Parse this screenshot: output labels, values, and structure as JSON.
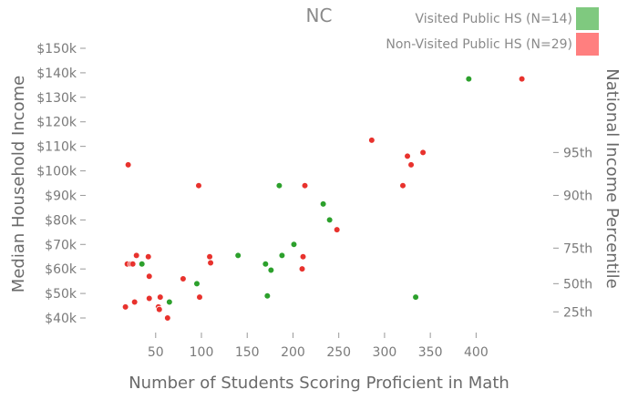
{
  "chart_data": {
    "type": "scatter",
    "title": "NC",
    "xlabel": "Number of Students Scoring Proficient in Math",
    "ylabel": "Median Household Income",
    "y2label": "National Income Percentile",
    "xlim": [
      0,
      460
    ],
    "ylim": [
      35000,
      155000
    ],
    "x_ticks": [
      50,
      100,
      150,
      200,
      250,
      300,
      350,
      400
    ],
    "x_tick_labels": [
      "50",
      "100",
      "150",
      "200",
      "250",
      "300",
      "350",
      "400"
    ],
    "y_ticks": [
      40000,
      50000,
      60000,
      70000,
      80000,
      90000,
      100000,
      110000,
      120000,
      130000,
      140000,
      150000
    ],
    "y_tick_labels": [
      "$40k",
      "$50k",
      "$60k",
      "$70k",
      "$80k",
      "$90k",
      "$100k",
      "$110k",
      "$120k",
      "$130k",
      "$140k",
      "$150k"
    ],
    "y2_ticks": [
      {
        "label": "95th",
        "value": 107500
      },
      {
        "label": "90th",
        "value": 90000
      },
      {
        "label": "75th",
        "value": 68500
      },
      {
        "label": "50th",
        "value": 54000
      },
      {
        "label": "25th",
        "value": 42500
      }
    ],
    "grid": false,
    "legend_position": "top-right",
    "series": [
      {
        "name": "Visited Public HS (N=14)",
        "color": "#2ca02c",
        "legend_color": "#7fc97f",
        "points": [
          {
            "x": 35,
            "y": 62000
          },
          {
            "x": 65,
            "y": 46500
          },
          {
            "x": 95,
            "y": 54000
          },
          {
            "x": 140,
            "y": 65500
          },
          {
            "x": 170,
            "y": 62000
          },
          {
            "x": 172,
            "y": 49000
          },
          {
            "x": 176,
            "y": 59500
          },
          {
            "x": 185,
            "y": 94000
          },
          {
            "x": 188,
            "y": 65500
          },
          {
            "x": 201,
            "y": 70000
          },
          {
            "x": 233,
            "y": 86500
          },
          {
            "x": 240,
            "y": 80000
          },
          {
            "x": 334,
            "y": 48500
          },
          {
            "x": 392,
            "y": 137500
          }
        ]
      },
      {
        "name": "Non-Visited Public HS (N=29)",
        "color": "#e8322d",
        "legend_color": "#ff7f7f",
        "points": [
          {
            "x": 17,
            "y": 44500
          },
          {
            "x": 19,
            "y": 62000
          },
          {
            "x": 20,
            "y": 102500
          },
          {
            "x": 23,
            "y": 62000
          },
          {
            "x": 25,
            "y": 62000
          },
          {
            "x": 27,
            "y": 46500
          },
          {
            "x": 29,
            "y": 65500
          },
          {
            "x": 42,
            "y": 65000
          },
          {
            "x": 43,
            "y": 57000
          },
          {
            "x": 43,
            "y": 48000
          },
          {
            "x": 53,
            "y": 44500
          },
          {
            "x": 54,
            "y": 43500
          },
          {
            "x": 55,
            "y": 48500
          },
          {
            "x": 63,
            "y": 40000
          },
          {
            "x": 80,
            "y": 56000
          },
          {
            "x": 97,
            "y": 94000
          },
          {
            "x": 98,
            "y": 48500
          },
          {
            "x": 109,
            "y": 65000
          },
          {
            "x": 110,
            "y": 62500
          },
          {
            "x": 210,
            "y": 60000
          },
          {
            "x": 211,
            "y": 65000
          },
          {
            "x": 213,
            "y": 94000
          },
          {
            "x": 248,
            "y": 76000
          },
          {
            "x": 286,
            "y": 112500
          },
          {
            "x": 320,
            "y": 94000
          },
          {
            "x": 325,
            "y": 106000
          },
          {
            "x": 329,
            "y": 102500
          },
          {
            "x": 342,
            "y": 107500
          },
          {
            "x": 450,
            "y": 137500
          }
        ]
      }
    ]
  }
}
